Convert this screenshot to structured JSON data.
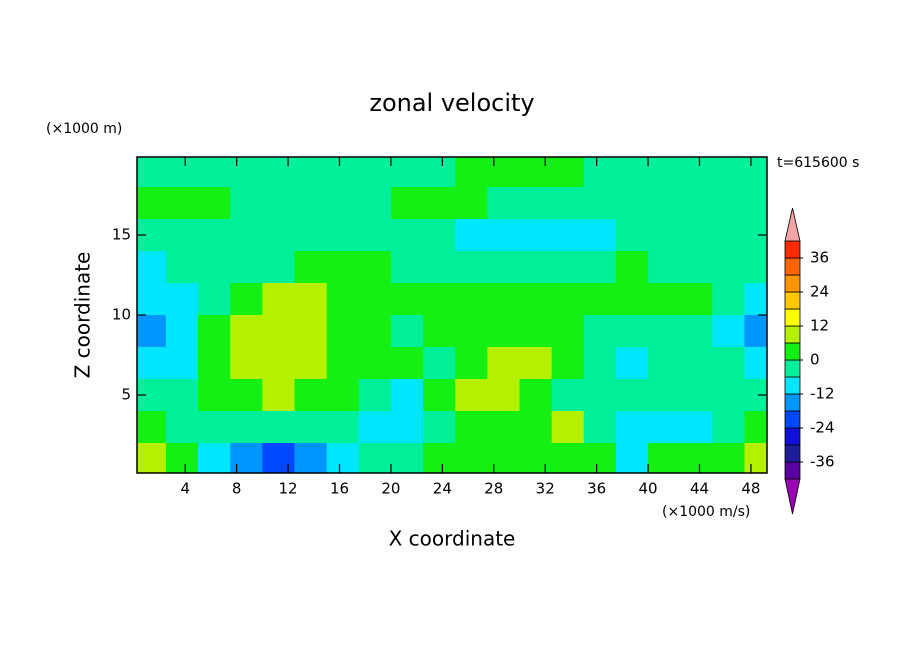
{
  "chart_data": {
    "type": "contour",
    "title": "zonal velocity",
    "x_label": "X coordinate",
    "y_label": "Z coordinate",
    "y_units": "(×1000 m)",
    "x_units": "(×1000 m/s)",
    "time_label": "t=615600 s",
    "xlim": [
      0.25,
      49.25
    ],
    "ylim": [
      0.125,
      19.875
    ],
    "xticks": [
      4,
      8,
      12,
      16,
      20,
      24,
      28,
      32,
      36,
      40,
      44,
      48
    ],
    "yticks": [
      5,
      10,
      15
    ],
    "x": [
      1.25,
      3.75,
      6.25,
      8.75,
      11.25,
      13.75,
      16.25,
      18.75,
      21.25,
      23.75,
      26.25,
      28.75,
      31.25,
      33.75,
      36.25,
      38.75,
      41.25,
      43.75,
      46.25,
      48.75
    ],
    "z": [
      19,
      17,
      15,
      13,
      11,
      9,
      7,
      5,
      3,
      1
    ],
    "values": [
      [
        -3,
        -3,
        -3,
        -3,
        -3,
        -3,
        -3,
        -3,
        -3,
        -3,
        3,
        3,
        3,
        3,
        -3,
        -3,
        -3,
        -3,
        -3,
        -3
      ],
      [
        3,
        3,
        3,
        -3,
        -3,
        -3,
        -3,
        -3,
        3,
        3,
        3,
        -3,
        -3,
        -3,
        -3,
        -3,
        -3,
        -3,
        -3,
        -3
      ],
      [
        -3,
        -3,
        -3,
        -3,
        -3,
        -3,
        -3,
        -3,
        -3,
        -3,
        -9,
        -9,
        -9,
        -9,
        -9,
        -3,
        -3,
        -3,
        -3,
        -3
      ],
      [
        -9,
        -3,
        -3,
        -3,
        -3,
        3,
        3,
        3,
        -3,
        -3,
        -3,
        -3,
        -3,
        -3,
        -3,
        3,
        -3,
        -3,
        -3,
        -3
      ],
      [
        -9,
        -9,
        -3,
        3,
        9,
        9,
        3,
        3,
        3,
        3,
        3,
        3,
        3,
        3,
        3,
        3,
        3,
        3,
        -3,
        -9
      ],
      [
        -15,
        -9,
        3,
        9,
        9,
        9,
        3,
        3,
        -3,
        3,
        3,
        3,
        3,
        3,
        -3,
        -3,
        -3,
        -3,
        -9,
        -15
      ],
      [
        -9,
        -9,
        3,
        9,
        9,
        9,
        3,
        3,
        3,
        -3,
        3,
        9,
        9,
        3,
        -3,
        -9,
        -3,
        -3,
        -3,
        -9
      ],
      [
        -3,
        -3,
        3,
        3,
        9,
        3,
        3,
        -3,
        -9,
        3,
        9,
        9,
        3,
        -3,
        -3,
        -3,
        -3,
        -3,
        -3,
        -3
      ],
      [
        3,
        -3,
        -3,
        -3,
        -3,
        -3,
        -3,
        -9,
        -9,
        -3,
        3,
        3,
        3,
        9,
        -3,
        -9,
        -9,
        -9,
        -3,
        3
      ],
      [
        9,
        3,
        -9,
        -15,
        -21,
        -15,
        -9,
        -3,
        -3,
        3,
        3,
        3,
        3,
        3,
        3,
        -9,
        3,
        3,
        3,
        9
      ]
    ],
    "levels": [
      -42,
      -36,
      -30,
      -24,
      -18,
      -12,
      -6,
      0,
      6,
      12,
      18,
      24,
      30,
      36,
      42
    ],
    "colors": [
      "#9a00b4",
      "#5a00a0",
      "#1e1e9c",
      "#1010d8",
      "#0048ff",
      "#0096ff",
      "#00e6ff",
      "#00f09a",
      "#14f014",
      "#b4f000",
      "#ffff00",
      "#ffc800",
      "#ff9600",
      "#ff6400",
      "#ff2a00",
      "#f4a4a4"
    ],
    "colorbar_ticks": [
      -36,
      -24,
      -12,
      0,
      12,
      24,
      36
    ]
  }
}
